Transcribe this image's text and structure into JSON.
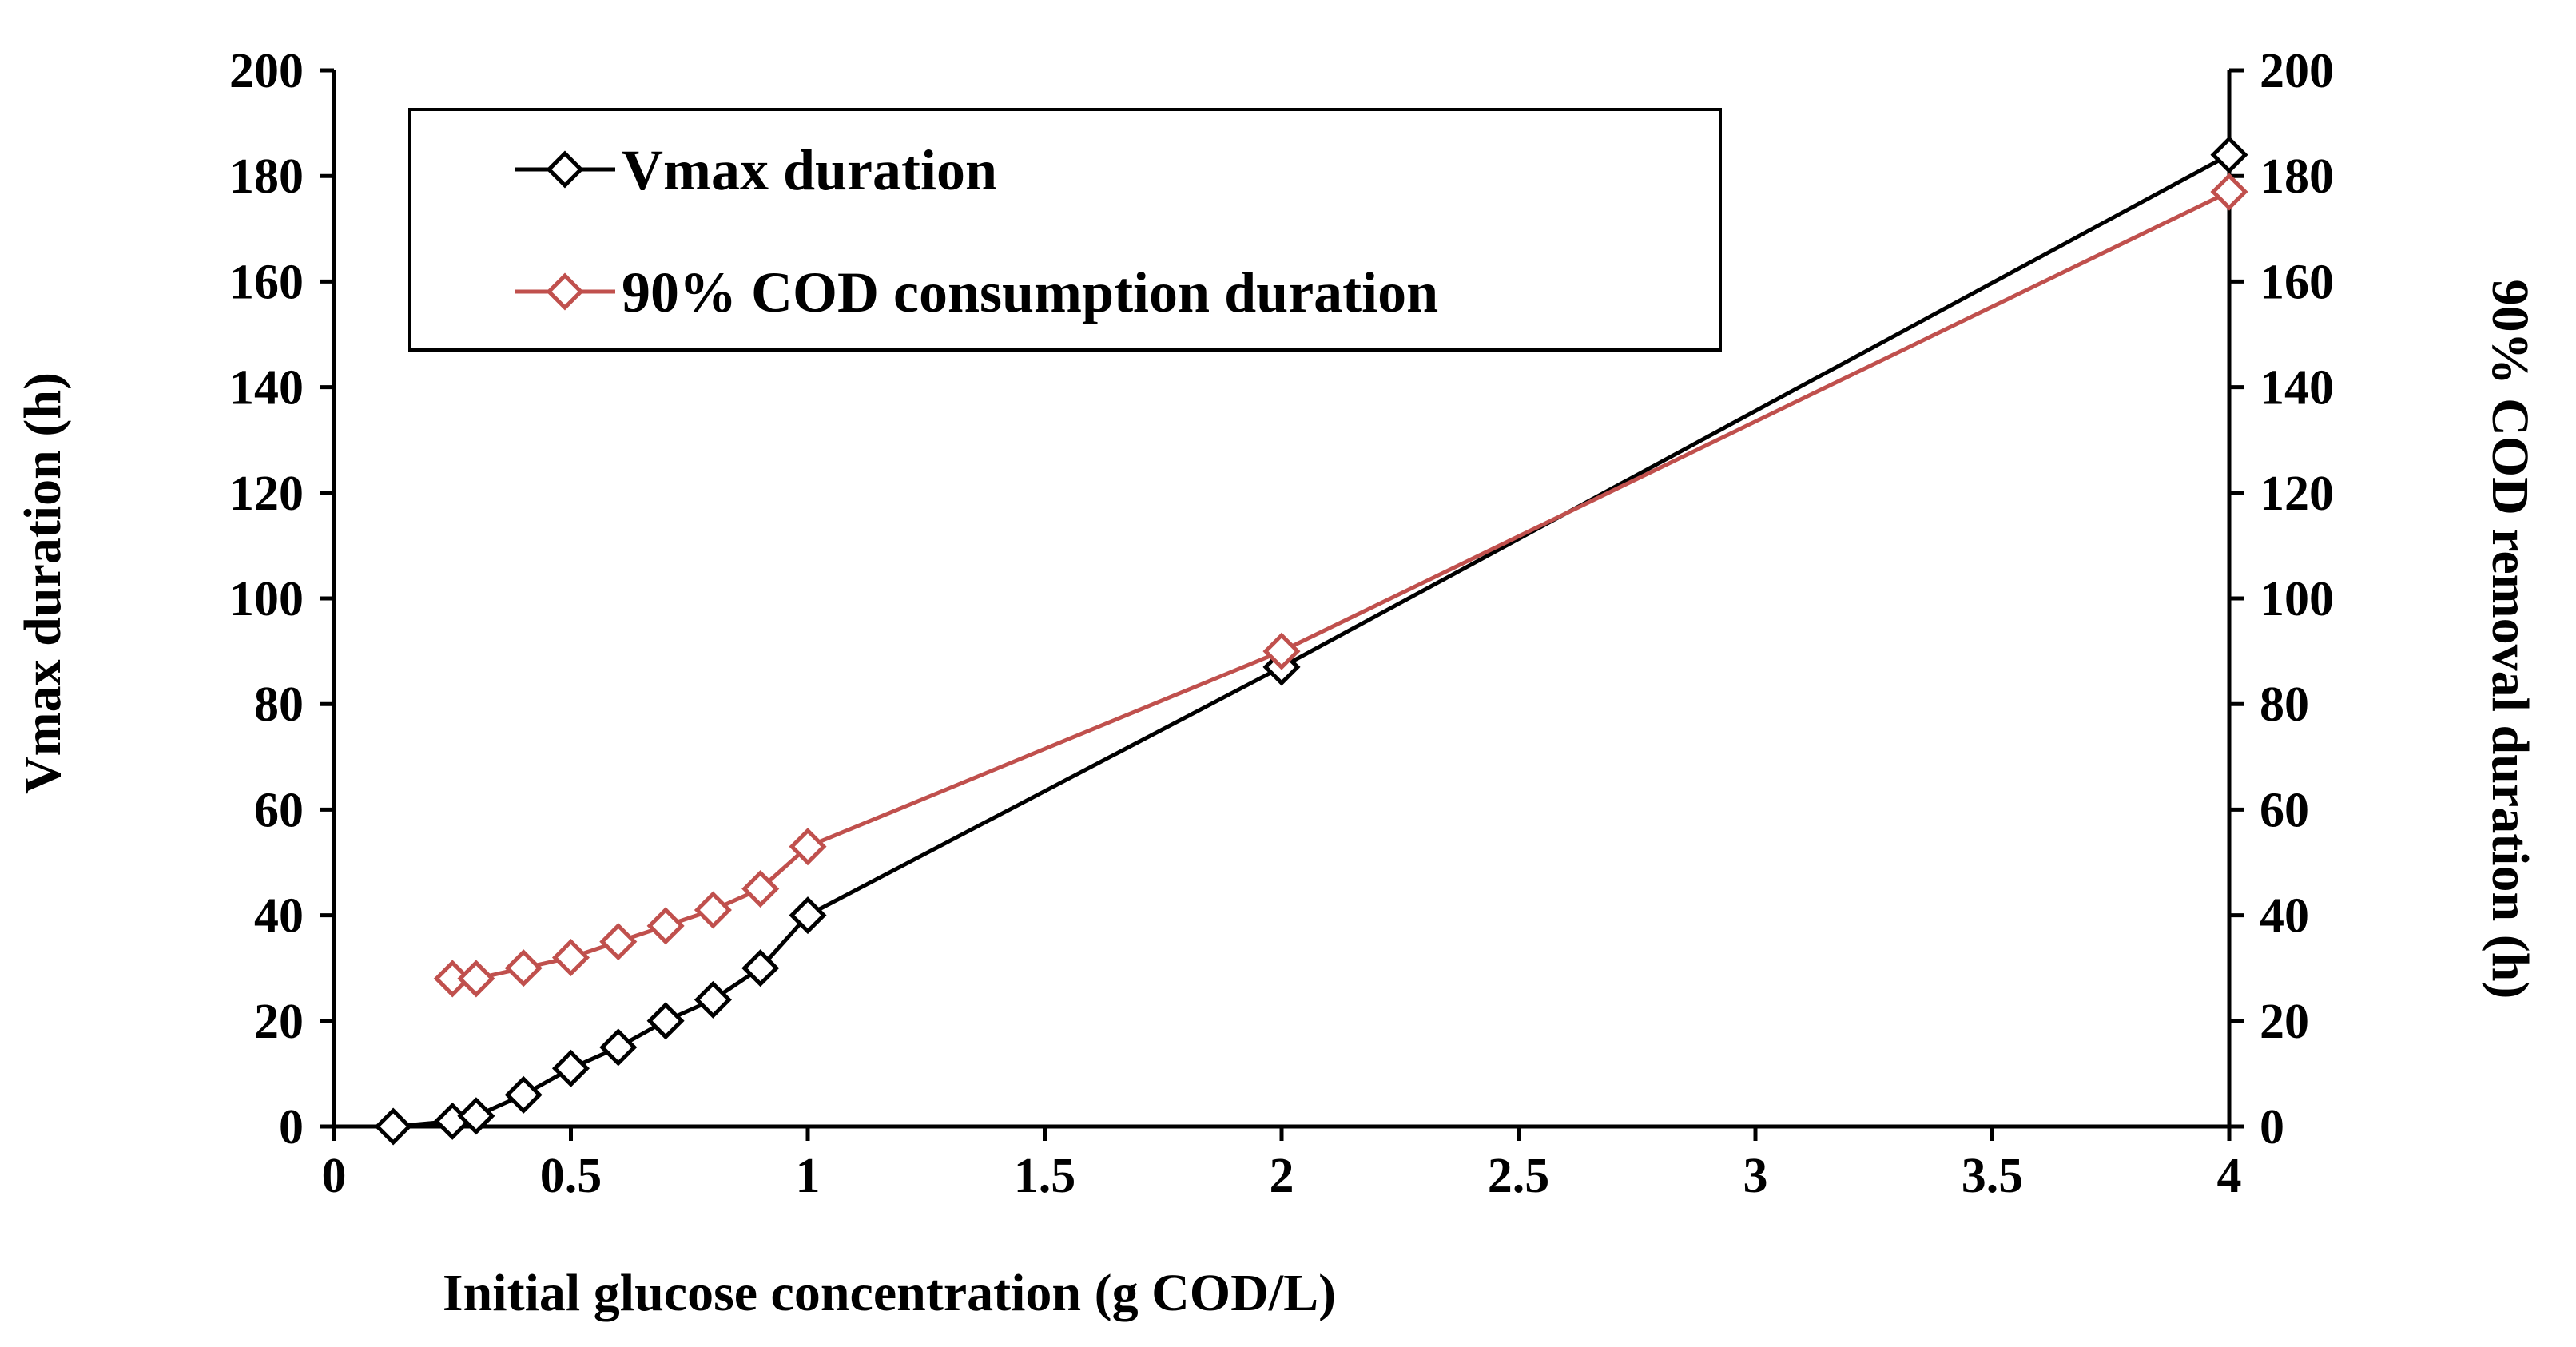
{
  "chart_data": {
    "type": "line",
    "xlabel": "Initial glucose concentration (g COD/L)",
    "ylabel": "Vmax  duration (h)",
    "y2label": "90% COD removal duration (h)",
    "xlim": [
      0,
      4
    ],
    "ylim": [
      0,
      200
    ],
    "y2lim": [
      0,
      200
    ],
    "x_tick_labels": [
      "0",
      "0.5",
      "1",
      "1.5",
      "2",
      "2.5",
      "3",
      "3.5",
      "4"
    ],
    "y_tick_labels": [
      "0",
      "20",
      "40",
      "60",
      "80",
      "100",
      "120",
      "140",
      "160",
      "180",
      "200"
    ],
    "y2_tick_labels": [
      "0",
      "20",
      "40",
      "60",
      "80",
      "100",
      "120",
      "140",
      "160",
      "180",
      "200"
    ],
    "legend_position": "top-left",
    "series": [
      {
        "name": "Vmax duration",
        "color": "#000000",
        "axis": "left",
        "x": [
          0.125,
          0.25,
          0.3,
          0.4,
          0.5,
          0.6,
          0.7,
          0.8,
          0.9,
          1.0,
          2.0,
          4.0
        ],
        "values": [
          0,
          1,
          2,
          6,
          11,
          15,
          20,
          24,
          30,
          40,
          87,
          184
        ]
      },
      {
        "name": "90% COD consumption duration",
        "color": "#c0504d",
        "axis": "right",
        "x": [
          0.25,
          0.3,
          0.4,
          0.5,
          0.6,
          0.7,
          0.8,
          0.9,
          1.0,
          2.0,
          4.0
        ],
        "values": [
          28,
          28,
          30,
          32,
          35,
          38,
          41,
          45,
          53,
          90,
          177
        ]
      }
    ]
  }
}
